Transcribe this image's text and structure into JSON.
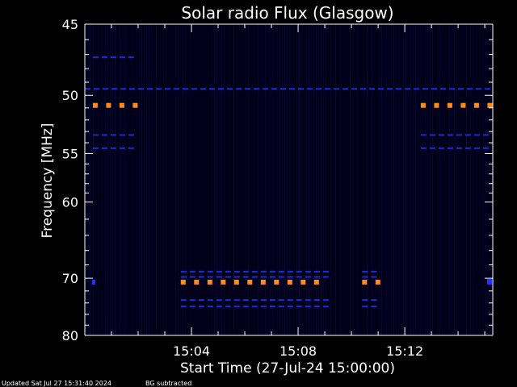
{
  "chart_data": {
    "type": "heatmap",
    "title": "Solar radio Flux (Glasgow)",
    "xlabel": "Start Time (27-Jul-24 15:00:00)",
    "ylabel": "Frequency [MHz]",
    "x_unit": "minutes after 15:00:00",
    "xlim": [
      0,
      15.3
    ],
    "ylim": [
      45,
      80
    ],
    "y_scale": "reciprocal",
    "x_ticks": [
      {
        "value": 4,
        "label": "15:04"
      },
      {
        "value": 8,
        "label": "15:08"
      },
      {
        "value": 12,
        "label": "15:12"
      }
    ],
    "y_ticks": [
      {
        "value": 45,
        "label": "45"
      },
      {
        "value": 50,
        "label": "50"
      },
      {
        "value": 55,
        "label": "55"
      },
      {
        "value": 60,
        "label": "60"
      },
      {
        "value": 70,
        "label": "70"
      },
      {
        "value": 80,
        "label": "80"
      }
    ],
    "y_minor_ticks": [
      46,
      47,
      48,
      49,
      51,
      52,
      53,
      54,
      56,
      57,
      58,
      59,
      62,
      64,
      66,
      68,
      72,
      74,
      76,
      78
    ],
    "emission_bands": [
      {
        "freq": 50.8,
        "level": "high",
        "segments": [
          [
            0.3,
            2.1
          ],
          [
            12.6,
            15.3
          ]
        ]
      },
      {
        "freq": 70.6,
        "level": "high",
        "segments": [
          [
            3.6,
            9.2
          ],
          [
            10.4,
            11.1
          ]
        ]
      },
      {
        "freq": 49.5,
        "level": "low",
        "segments": [
          [
            0.0,
            15.3
          ]
        ]
      },
      {
        "freq": 47.2,
        "level": "low",
        "segments": [
          [
            0.3,
            2.1
          ]
        ]
      },
      {
        "freq": 53.3,
        "level": "low",
        "segments": [
          [
            0.3,
            2.1
          ],
          [
            12.6,
            15.3
          ]
        ]
      },
      {
        "freq": 54.5,
        "level": "low",
        "segments": [
          [
            0.3,
            2.1
          ],
          [
            12.6,
            15.3
          ]
        ]
      },
      {
        "freq": 69.0,
        "level": "low",
        "segments": [
          [
            3.6,
            9.2
          ],
          [
            10.4,
            11.1
          ]
        ]
      },
      {
        "freq": 69.8,
        "level": "low",
        "segments": [
          [
            3.6,
            9.2
          ],
          [
            10.4,
            11.1
          ]
        ]
      },
      {
        "freq": 73.5,
        "level": "low",
        "segments": [
          [
            3.6,
            9.2
          ],
          [
            10.4,
            11.1
          ]
        ]
      },
      {
        "freq": 74.6,
        "level": "low",
        "segments": [
          [
            3.6,
            9.2
          ],
          [
            10.4,
            11.1
          ]
        ]
      }
    ],
    "colors": {
      "background": "#000000",
      "plot_background": "#00001a",
      "axis": "#ffffff",
      "high": "#ff8c1a",
      "low": "#1f2bd6",
      "edge_marker": "#2233ff"
    }
  },
  "footer": {
    "updated": "Updated Sat Jul 27 15:31:40 2024",
    "note": "BG subtracted"
  }
}
